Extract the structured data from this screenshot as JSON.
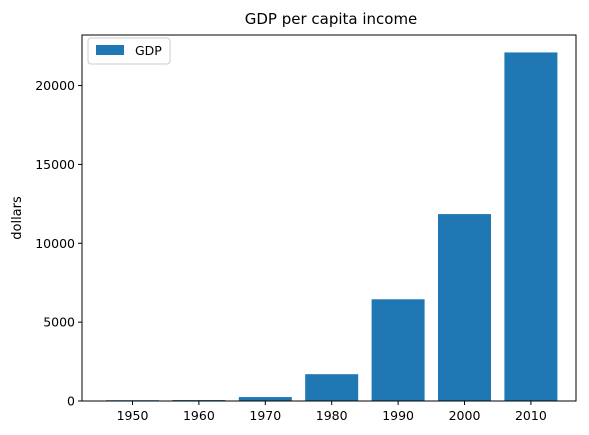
{
  "chart_data": {
    "type": "bar",
    "title": "GDP per capita income",
    "xlabel": "",
    "ylabel": "dollars",
    "categories": [
      "1950",
      "1960",
      "1970",
      "1980",
      "1990",
      "2000",
      "2010"
    ],
    "series": [
      {
        "name": "GDP",
        "values": [
          50,
          60,
          250,
          1700,
          6450,
          11850,
          22100
        ],
        "color": "#1f77b4"
      }
    ],
    "ylim": [
      0,
      23205
    ],
    "yticks": [
      0,
      5000,
      10000,
      15000,
      20000
    ],
    "ytick_labels": [
      "0",
      "5000",
      "10000",
      "15000",
      "20000"
    ],
    "grid": false,
    "legend": {
      "position": "upper-left",
      "entries": [
        "GDP"
      ]
    }
  }
}
